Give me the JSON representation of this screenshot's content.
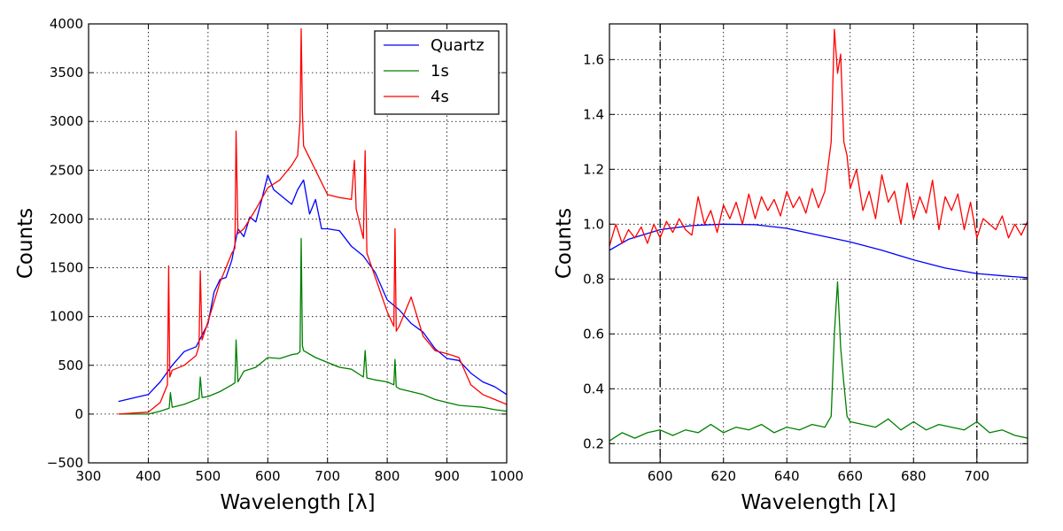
{
  "colors": {
    "quartz": "#0000ff",
    "one_s": "#008000",
    "four_s": "#ff0000",
    "reference": "#000000"
  },
  "chart_data": [
    {
      "type": "line",
      "title": "",
      "xlabel": "Wavelength [λ]",
      "ylabel": "Counts",
      "xlim": [
        300,
        1000
      ],
      "ylim": [
        -500,
        4000
      ],
      "xticks": [
        300,
        400,
        500,
        600,
        700,
        800,
        900,
        1000
      ],
      "xtick_labels": [
        "300",
        "400",
        "500",
        "600",
        "700",
        "800",
        "900",
        "1000"
      ],
      "yticks": [
        -500,
        0,
        500,
        1000,
        1500,
        2000,
        2500,
        3000,
        3500,
        4000
      ],
      "ytick_labels": [
        "−500",
        "0",
        "500",
        "1000",
        "1500",
        "2000",
        "2500",
        "3000",
        "3500",
        "4000"
      ],
      "grid": true,
      "legend": {
        "placement": "top-right",
        "entries": [
          "Quartz",
          "1s",
          "4s"
        ]
      },
      "series": [
        {
          "name": "Quartz",
          "color": "#0000ff",
          "x": [
            350,
            400,
            420,
            440,
            460,
            480,
            500,
            510,
            520,
            530,
            540,
            550,
            560,
            570,
            580,
            590,
            600,
            610,
            620,
            630,
            640,
            650,
            660,
            670,
            680,
            690,
            700,
            720,
            740,
            760,
            780,
            800,
            820,
            840,
            860,
            880,
            900,
            920,
            940,
            960,
            980,
            1000
          ],
          "y": [
            130,
            200,
            330,
            500,
            640,
            690,
            930,
            1250,
            1380,
            1400,
            1580,
            1900,
            1820,
            2020,
            1970,
            2200,
            2450,
            2300,
            2250,
            2200,
            2150,
            2300,
            2400,
            2050,
            2200,
            1900,
            1900,
            1880,
            1720,
            1620,
            1450,
            1170,
            1070,
            930,
            840,
            670,
            570,
            550,
            420,
            330,
            280,
            200
          ]
        },
        {
          "name": "1s",
          "color": "#008000",
          "x": [
            350,
            400,
            420,
            435,
            437,
            440,
            460,
            485,
            487,
            490,
            500,
            520,
            540,
            545,
            547,
            550,
            560,
            580,
            600,
            620,
            640,
            650,
            654,
            656,
            658,
            660,
            680,
            700,
            720,
            740,
            760,
            763,
            766,
            780,
            800,
            811,
            813,
            815,
            820,
            840,
            860,
            880,
            900,
            920,
            940,
            960,
            980,
            1000
          ],
          "y": [
            0,
            0,
            30,
            60,
            220,
            70,
            100,
            160,
            380,
            170,
            180,
            230,
            300,
            320,
            760,
            330,
            440,
            480,
            580,
            570,
            610,
            620,
            640,
            1800,
            700,
            650,
            580,
            530,
            480,
            460,
            380,
            650,
            370,
            350,
            330,
            300,
            560,
            280,
            260,
            230,
            200,
            150,
            120,
            90,
            80,
            70,
            45,
            30
          ]
        },
        {
          "name": "4s",
          "color": "#ff0000",
          "x": [
            350,
            400,
            420,
            432,
            434,
            436,
            440,
            460,
            480,
            485,
            487,
            490,
            500,
            520,
            540,
            545,
            547,
            550,
            560,
            580,
            600,
            620,
            640,
            650,
            654,
            656,
            658,
            660,
            680,
            700,
            720,
            740,
            745,
            748,
            760,
            763,
            766,
            780,
            800,
            811,
            813,
            815,
            820,
            840,
            860,
            880,
            900,
            920,
            940,
            960,
            980,
            1000
          ],
          "y": [
            0,
            20,
            120,
            300,
            1520,
            380,
            450,
            500,
            600,
            700,
            1470,
            760,
            950,
            1350,
            1650,
            1700,
            2900,
            1850,
            1900,
            2100,
            2320,
            2400,
            2550,
            2650,
            3000,
            3950,
            3100,
            2750,
            2500,
            2250,
            2220,
            2200,
            2600,
            2100,
            1800,
            2700,
            1650,
            1400,
            1050,
            900,
            1900,
            850,
            900,
            1200,
            800,
            650,
            620,
            580,
            300,
            200,
            150,
            100
          ]
        }
      ]
    },
    {
      "type": "line",
      "title": "",
      "xlabel": "Wavelength [λ]",
      "ylabel": "Counts",
      "xlim": [
        584,
        716
      ],
      "ylim": [
        0.13,
        1.73
      ],
      "xticks": [
        600,
        620,
        640,
        660,
        680,
        700
      ],
      "xtick_labels": [
        "600",
        "620",
        "640",
        "660",
        "680",
        "700"
      ],
      "yticks": [
        0.2,
        0.4,
        0.6,
        0.8,
        1.0,
        1.2,
        1.4,
        1.6
      ],
      "ytick_labels": [
        "0.2",
        "0.4",
        "0.6",
        "0.8",
        "1.0",
        "1.2",
        "1.4",
        "1.6"
      ],
      "grid": true,
      "vlines": [
        600,
        700
      ],
      "series": [
        {
          "name": "Quartz",
          "color": "#0000ff",
          "x": [
            584,
            590,
            600,
            610,
            620,
            630,
            640,
            650,
            660,
            670,
            680,
            690,
            700,
            710,
            716
          ],
          "y": [
            0.905,
            0.945,
            0.98,
            0.995,
            1.0,
            0.998,
            0.985,
            0.96,
            0.935,
            0.905,
            0.87,
            0.84,
            0.82,
            0.81,
            0.805
          ]
        },
        {
          "name": "1s",
          "color": "#008000",
          "x": [
            584,
            588,
            592,
            596,
            600,
            604,
            608,
            612,
            616,
            620,
            624,
            628,
            632,
            636,
            640,
            644,
            648,
            652,
            654,
            655,
            656,
            657,
            658,
            659,
            660,
            664,
            668,
            672,
            676,
            680,
            684,
            688,
            692,
            696,
            700,
            704,
            708,
            712,
            716
          ],
          "y": [
            0.21,
            0.24,
            0.22,
            0.24,
            0.25,
            0.23,
            0.25,
            0.24,
            0.27,
            0.24,
            0.26,
            0.25,
            0.27,
            0.24,
            0.26,
            0.25,
            0.27,
            0.26,
            0.3,
            0.6,
            0.79,
            0.55,
            0.42,
            0.3,
            0.28,
            0.27,
            0.26,
            0.29,
            0.25,
            0.28,
            0.25,
            0.27,
            0.26,
            0.25,
            0.28,
            0.24,
            0.25,
            0.23,
            0.22
          ]
        },
        {
          "name": "4s",
          "color": "#ff0000",
          "x": [
            584,
            586,
            588,
            590,
            592,
            594,
            596,
            598,
            600,
            602,
            604,
            606,
            608,
            610,
            612,
            614,
            616,
            618,
            620,
            622,
            624,
            626,
            628,
            630,
            632,
            634,
            636,
            638,
            640,
            642,
            644,
            646,
            648,
            650,
            652,
            654,
            655,
            656,
            657,
            658,
            659,
            660,
            662,
            664,
            666,
            668,
            670,
            672,
            674,
            676,
            678,
            680,
            682,
            684,
            686,
            688,
            690,
            692,
            694,
            696,
            698,
            700,
            702,
            704,
            706,
            708,
            710,
            712,
            714,
            716
          ],
          "y": [
            0.92,
            1.0,
            0.93,
            0.98,
            0.95,
            0.99,
            0.93,
            1.0,
            0.95,
            1.01,
            0.97,
            1.02,
            0.98,
            0.96,
            1.1,
            1.0,
            1.05,
            0.97,
            1.07,
            1.02,
            1.08,
            1.0,
            1.11,
            1.02,
            1.1,
            1.05,
            1.09,
            1.03,
            1.12,
            1.06,
            1.1,
            1.04,
            1.13,
            1.06,
            1.12,
            1.3,
            1.71,
            1.55,
            1.62,
            1.3,
            1.25,
            1.13,
            1.2,
            1.05,
            1.12,
            1.02,
            1.18,
            1.08,
            1.12,
            1.0,
            1.15,
            1.02,
            1.1,
            1.04,
            1.16,
            0.98,
            1.1,
            1.05,
            1.11,
            0.98,
            1.08,
            0.95,
            1.02,
            1.0,
            0.98,
            1.03,
            0.95,
            1.0,
            0.96,
            1.01
          ]
        }
      ]
    }
  ]
}
